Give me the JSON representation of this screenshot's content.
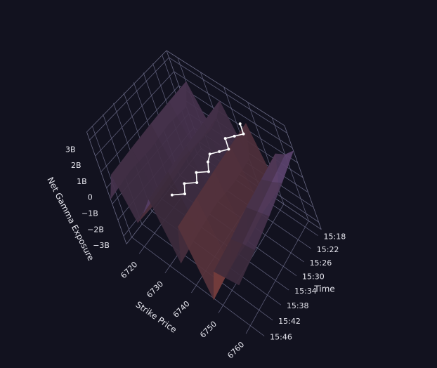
{
  "chart_data": {
    "type": "surface3d",
    "x_title": "Strike Price",
    "y_title": "Time",
    "z_title": "Net Gamma Exposure",
    "xlim": [
      6715,
      6765
    ],
    "xticks": [
      6720,
      6730,
      6740,
      6750,
      6760
    ],
    "ylim": [
      "15:16",
      "15:48"
    ],
    "yticks": [
      "15:18",
      "15:22",
      "15:26",
      "15:30",
      "15:34",
      "15:38",
      "15:42",
      "15:46"
    ],
    "zlim": [
      -3500000000,
      3500000000
    ],
    "zticks": [
      {
        "value": -3000000000,
        "label": "−3B"
      },
      {
        "value": -2000000000,
        "label": "−2B"
      },
      {
        "value": -1000000000,
        "label": "−1B"
      },
      0,
      {
        "value": 1000000000,
        "label": "1B"
      },
      {
        "value": 2000000000,
        "label": "2B"
      },
      {
        "value": 3000000000,
        "label": "3B"
      }
    ],
    "colorscale": [
      "#c4553c",
      "#3b2a3c",
      "#9d74d2"
    ],
    "grid": true,
    "surface": {
      "strikes": [
        6715,
        6720,
        6725,
        6730,
        6735,
        6740,
        6745,
        6750,
        6755,
        6760,
        6765
      ],
      "times": [
        "15:16",
        "15:24",
        "15:32",
        "15:40",
        "15:48"
      ],
      "z": [
        [
          -500000000,
          1800000000,
          -1000000000,
          300000000,
          2000000000,
          -1500000000,
          1500000000,
          -2500000000,
          500000000,
          1000000000,
          1800000000
        ],
        [
          -400000000,
          1700000000,
          -900000000,
          200000000,
          1900000000,
          -1600000000,
          1400000000,
          -2400000000,
          300000000,
          700000000,
          1200000000
        ],
        [
          -600000000,
          1600000000,
          -1100000000,
          400000000,
          1800000000,
          -1400000000,
          1300000000,
          -2600000000,
          100000000,
          400000000,
          700000000
        ],
        [
          -500000000,
          1500000000,
          -1200000000,
          300000000,
          1700000000,
          -1500000000,
          1200000000,
          -2500000000,
          -200000000,
          100000000,
          300000000
        ],
        [
          -700000000,
          1400000000,
          -1000000000,
          200000000,
          1600000000,
          -1700000000,
          1100000000,
          -2700000000,
          -400000000,
          -200000000,
          0
        ]
      ]
    },
    "line": {
      "color": "#ffffff",
      "z": 2500000000,
      "times": [
        "15:46",
        "15:44",
        "15:42",
        "15:40",
        "15:38",
        "15:36",
        "15:34",
        "15:32",
        "15:30",
        "15:28",
        "15:26",
        "15:24",
        "15:22",
        "15:20"
      ],
      "strikes": [
        6744,
        6747,
        6745,
        6748,
        6746,
        6749,
        6747,
        6746,
        6748,
        6750,
        6747,
        6749,
        6751,
        6748
      ]
    }
  }
}
